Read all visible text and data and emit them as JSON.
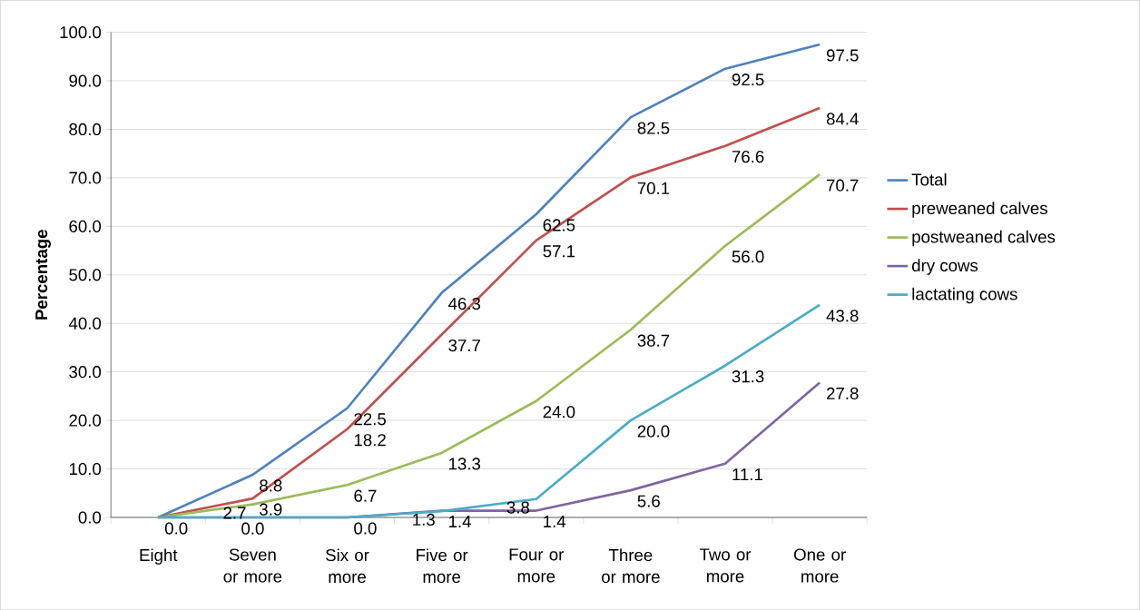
{
  "chart_data": {
    "type": "line",
    "ylabel": "Percentage",
    "categories": [
      "Eight",
      "Seven or more",
      "Six or more",
      "Five or more",
      "Four or more",
      "Three or more",
      "Two or more",
      "One or more"
    ],
    "series": [
      {
        "name": "Total",
        "color": "#4f81bd",
        "values": [
          0.0,
          8.8,
          22.5,
          46.3,
          62.5,
          82.5,
          92.5,
          97.5
        ],
        "value_labels": [
          "0.0",
          "8.8",
          "22.5",
          "46.3",
          "62.5",
          "82.5",
          "92.5",
          "97.5"
        ]
      },
      {
        "name": "preweaned calves",
        "color": "#c0504d",
        "values": [
          0.0,
          3.9,
          18.2,
          37.7,
          57.1,
          70.1,
          76.6,
          84.4
        ],
        "value_labels": [
          null,
          "3.9",
          "18.2",
          "37.7",
          "57.1",
          "70.1",
          "76.6",
          "84.4"
        ]
      },
      {
        "name": "postweaned calves",
        "color": "#9bbb59",
        "values": [
          0.0,
          2.7,
          6.7,
          13.3,
          24.0,
          38.7,
          56.0,
          70.7
        ],
        "value_labels": [
          null,
          "2.7",
          "6.7",
          "13.3",
          "24.0",
          "38.7",
          "56.0",
          "70.7"
        ]
      },
      {
        "name": "dry cows",
        "color": "#8064a2",
        "values": [
          0.0,
          0.0,
          0.0,
          1.4,
          1.4,
          5.6,
          11.1,
          27.8
        ],
        "value_labels": [
          null,
          "0.0",
          "0.0",
          "1.4",
          "1.4",
          "5.6",
          "11.1",
          "27.8"
        ]
      },
      {
        "name": "lactating cows",
        "color": "#4bacc6",
        "values": [
          0.0,
          0.0,
          0.0,
          1.3,
          3.8,
          20.0,
          31.3,
          43.8
        ],
        "value_labels": [
          null,
          null,
          null,
          "1.3",
          "3.8",
          "20.0",
          "31.3",
          "43.8"
        ]
      }
    ],
    "ylim": [
      0,
      100
    ],
    "yticks": [
      {
        "value": 0,
        "label": "0.0"
      },
      {
        "value": 10,
        "label": "10.0"
      },
      {
        "value": 20,
        "label": "20.0"
      },
      {
        "value": 30,
        "label": "30.0"
      },
      {
        "value": 40,
        "label": "40.0"
      },
      {
        "value": 50,
        "label": "50.0"
      },
      {
        "value": 60,
        "label": "60.0"
      },
      {
        "value": 70,
        "label": "70.0"
      },
      {
        "value": 80,
        "label": "80.0"
      },
      {
        "value": 90,
        "label": "90.0"
      },
      {
        "value": 100,
        "label": "100.0"
      }
    ],
    "grid": "y",
    "legend": "right",
    "marker": "none",
    "line_style": "solid"
  }
}
